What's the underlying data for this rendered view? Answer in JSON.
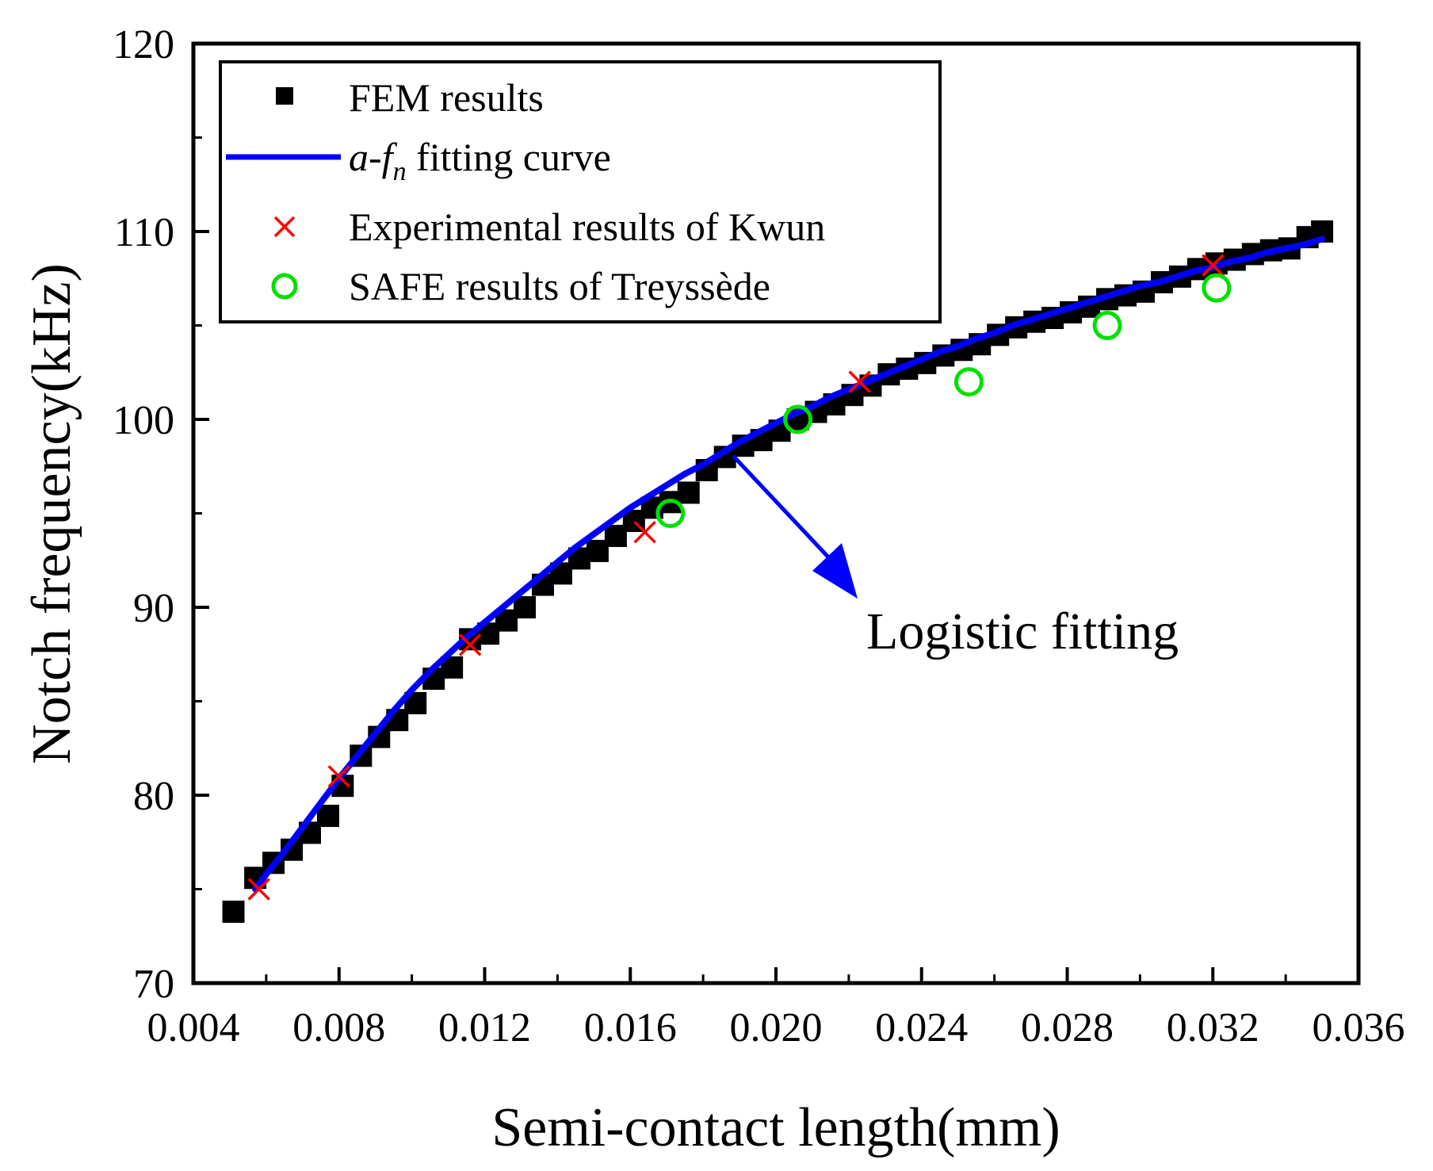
{
  "chart_data": {
    "type": "scatter",
    "xlabel": "Semi-contact length(mm)",
    "ylabel": "Notch frequency(kHz)",
    "xlim": [
      0.004,
      0.036
    ],
    "ylim": [
      70,
      120
    ],
    "xticks": [
      "0.004",
      "0.008",
      "0.012",
      "0.016",
      "0.020",
      "0.024",
      "0.028",
      "0.032",
      "0.036"
    ],
    "yticks": [
      "70",
      "80",
      "90",
      "100",
      "110",
      "120"
    ],
    "annotation": "Logistic fitting",
    "legend": {
      "position": "top-left",
      "fem_label": "FEM results",
      "fit_label_italic_a": "a",
      "fit_label_dash": "-",
      "fit_label_italic_f": "f",
      "fit_label_sub_n": "n",
      "fit_label_rest": " fitting curve",
      "kwun_label": "Experimental results of Kwun",
      "safe_label": "SAFE results of Treyssède"
    },
    "colors": {
      "fem": "#000000",
      "fit": "#0000ff",
      "kwun": "#ff0000",
      "safe": "#00e000"
    },
    "series": [
      {
        "name": "FEM results",
        "marker": "square",
        "x": [
          0.0051,
          0.0057,
          0.0062,
          0.0067,
          0.0072,
          0.0077,
          0.0081,
          0.0086,
          0.0091,
          0.0096,
          0.0101,
          0.0106,
          0.0111,
          0.0116,
          0.0121,
          0.0126,
          0.0131,
          0.0136,
          0.0141,
          0.0146,
          0.0151,
          0.0156,
          0.0161,
          0.0166,
          0.0171,
          0.0176,
          0.0181,
          0.0186,
          0.0191,
          0.0196,
          0.0201,
          0.0206,
          0.0211,
          0.0216,
          0.0221,
          0.0226,
          0.0231,
          0.0236,
          0.0241,
          0.0246,
          0.0251,
          0.0256,
          0.0261,
          0.0266,
          0.0271,
          0.0276,
          0.0281,
          0.0286,
          0.0291,
          0.0296,
          0.0301,
          0.0306,
          0.0311,
          0.0316,
          0.0321,
          0.0326,
          0.0331,
          0.0336,
          0.0341,
          0.0346,
          0.035
        ],
        "y": [
          73.8,
          75.6,
          76.4,
          77.1,
          78.0,
          78.9,
          80.5,
          82.1,
          83.1,
          84.0,
          84.9,
          86.2,
          86.8,
          88.3,
          88.6,
          89.3,
          90.0,
          91.2,
          91.8,
          92.6,
          93.0,
          93.8,
          94.6,
          95.3,
          95.6,
          96.1,
          97.3,
          98.0,
          98.6,
          98.9,
          99.4,
          100.0,
          100.4,
          100.8,
          101.3,
          101.8,
          102.4,
          102.7,
          103.0,
          103.4,
          103.7,
          104.0,
          104.5,
          104.9,
          105.2,
          105.4,
          105.7,
          106.0,
          106.4,
          106.6,
          106.8,
          107.3,
          107.6,
          108.0,
          108.3,
          108.5,
          108.8,
          109.0,
          109.1,
          109.7,
          110.0
        ]
      },
      {
        "name": "a-fn fitting curve",
        "marker": "line",
        "x": [
          0.0057,
          0.006,
          0.0065,
          0.007,
          0.0075,
          0.008,
          0.0085,
          0.009,
          0.0095,
          0.01,
          0.0105,
          0.011,
          0.0115,
          0.012,
          0.0125,
          0.013,
          0.0135,
          0.014,
          0.0145,
          0.015,
          0.0155,
          0.016,
          0.0165,
          0.017,
          0.0175,
          0.018,
          0.0185,
          0.019,
          0.0195,
          0.02,
          0.0205,
          0.021,
          0.0215,
          0.022,
          0.0225,
          0.023,
          0.0235,
          0.024,
          0.0245,
          0.025,
          0.0255,
          0.026,
          0.0265,
          0.027,
          0.0275,
          0.028,
          0.0285,
          0.029,
          0.0295,
          0.03,
          0.0305,
          0.031,
          0.0315,
          0.032,
          0.0325,
          0.033,
          0.0335,
          0.034,
          0.0345,
          0.035
        ],
        "y": [
          75.0,
          75.8,
          77.0,
          78.3,
          79.6,
          80.9,
          82.1,
          83.3,
          84.5,
          85.6,
          86.6,
          87.5,
          88.4,
          89.2,
          90.0,
          90.8,
          91.6,
          92.4,
          93.2,
          93.9,
          94.6,
          95.3,
          95.9,
          96.5,
          97.1,
          97.6,
          98.2,
          98.8,
          99.3,
          99.8,
          100.3,
          100.7,
          101.2,
          101.6,
          102.0,
          102.4,
          102.8,
          103.2,
          103.6,
          103.9,
          104.3,
          104.6,
          105.0,
          105.3,
          105.6,
          105.9,
          106.2,
          106.5,
          106.8,
          107.1,
          107.3,
          107.6,
          107.9,
          108.1,
          108.4,
          108.6,
          108.9,
          109.1,
          109.3,
          109.6
        ]
      },
      {
        "name": "Experimental results of Kwun",
        "marker": "x",
        "x": [
          0.0058,
          0.008,
          0.0116,
          0.0164,
          0.0223,
          0.032
        ],
        "y": [
          75.0,
          81.0,
          88.0,
          94.0,
          102.0,
          108.2
        ]
      },
      {
        "name": "SAFE results of Treyssède",
        "marker": "circle",
        "x": [
          0.0171,
          0.0206,
          0.0253,
          0.0291,
          0.0321
        ],
        "y": [
          95.0,
          100.0,
          102.0,
          105.0,
          107.0
        ]
      }
    ]
  }
}
